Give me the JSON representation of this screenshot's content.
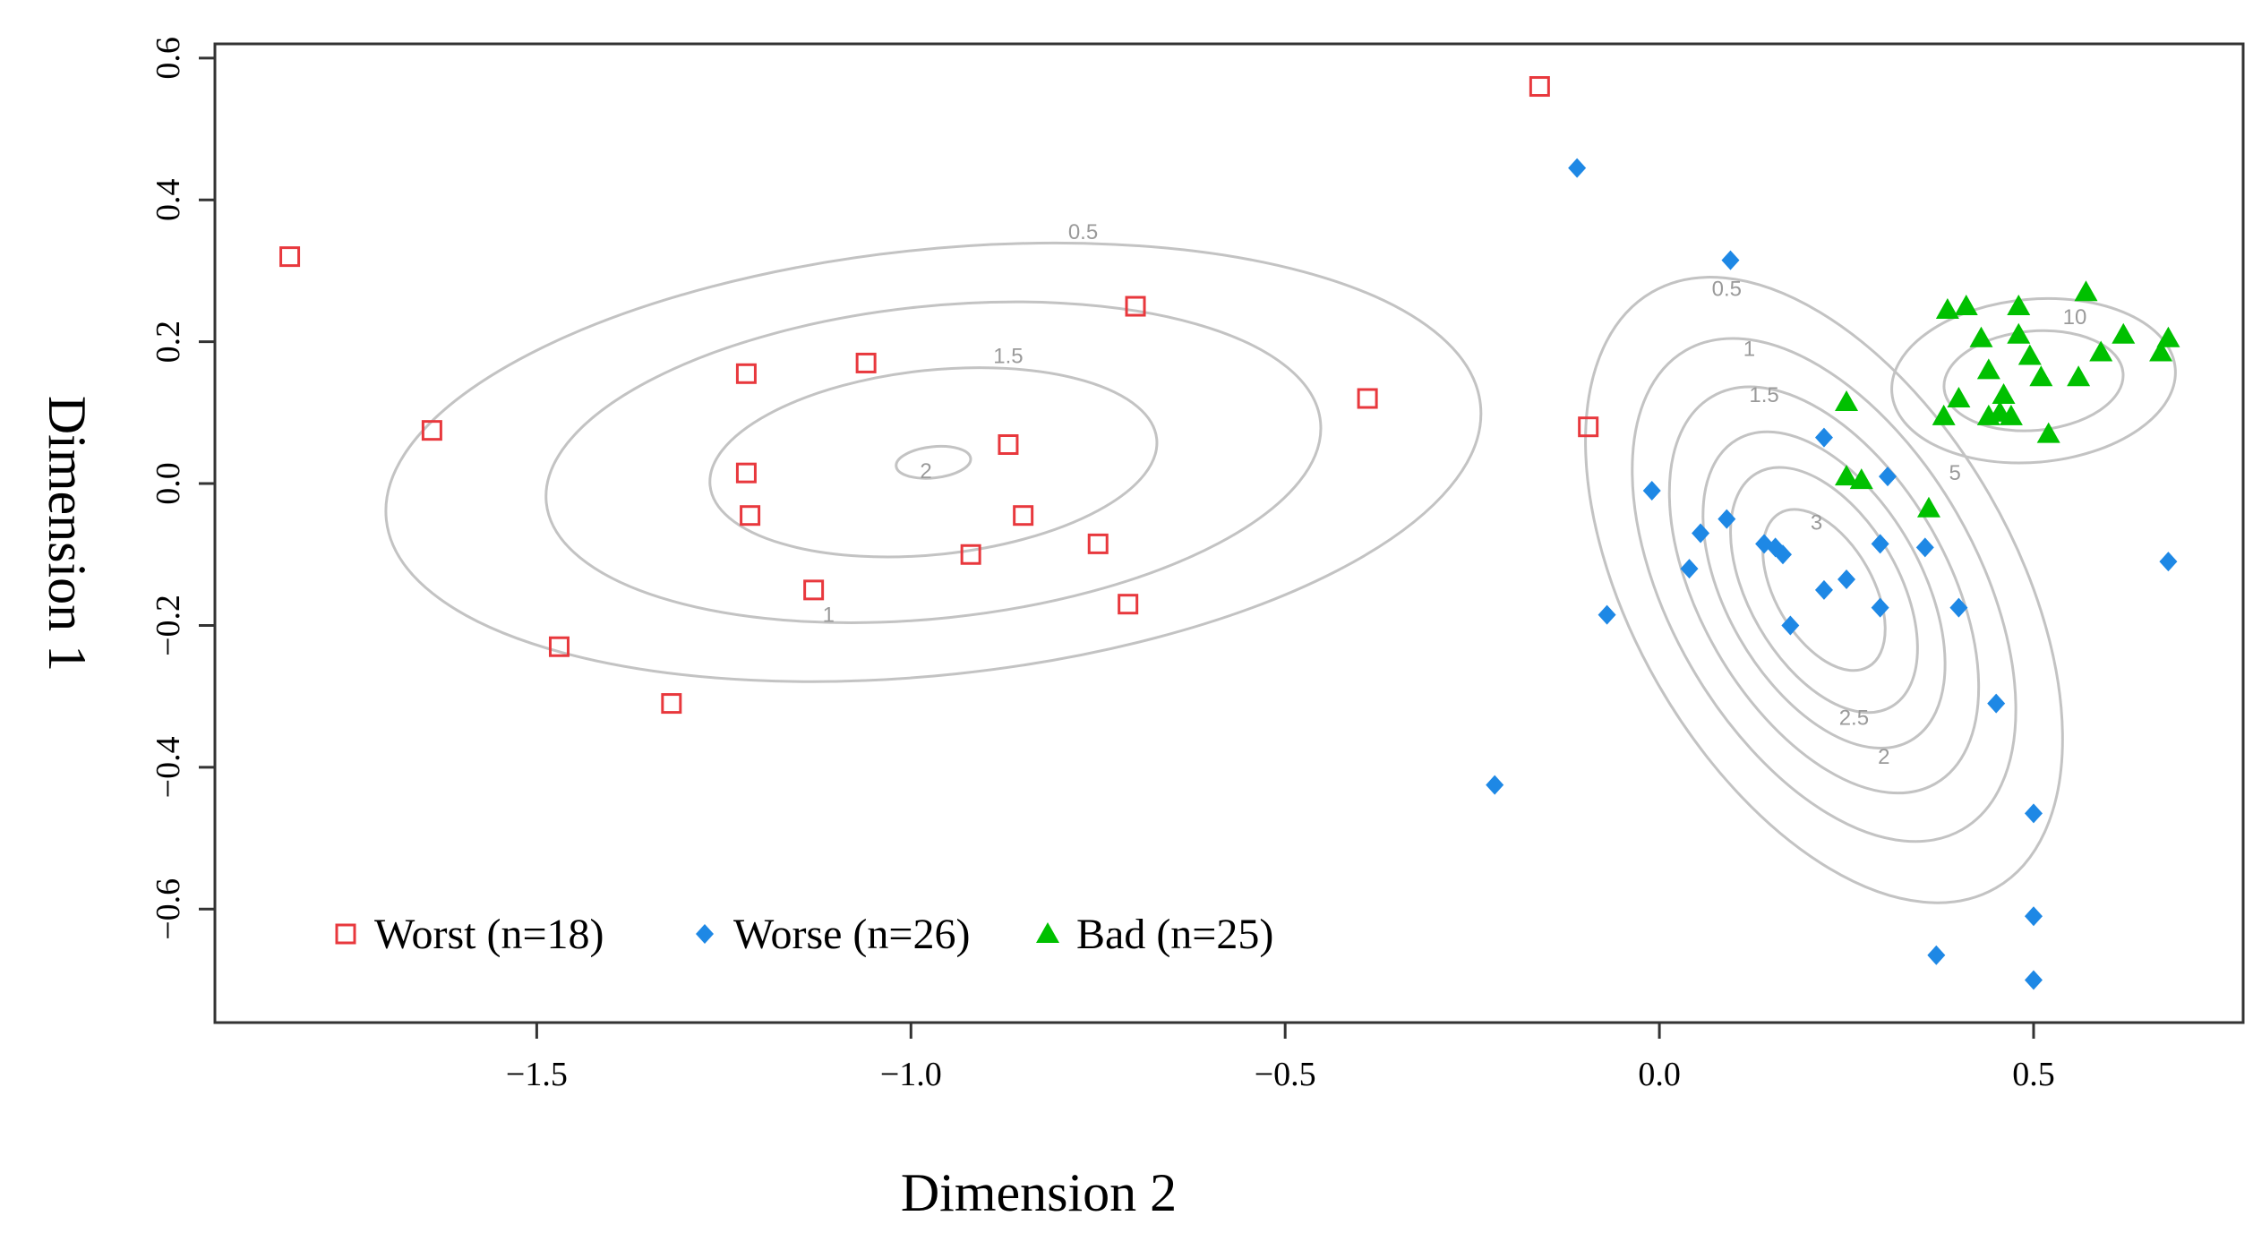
{
  "chart_data": {
    "type": "scatter",
    "xlabel": "Dimension 2",
    "ylabel": "Dimension 1",
    "xlim": [
      -1.93,
      0.78
    ],
    "ylim": [
      -0.76,
      0.62
    ],
    "xticks": [
      -1.5,
      -1.0,
      -0.5,
      0.0,
      0.5
    ],
    "xtick_labels": [
      "−1.5",
      "−1.0",
      "−0.5",
      "0.0",
      "0.5"
    ],
    "yticks": [
      -0.6,
      -0.4,
      -0.2,
      0.0,
      0.2,
      0.4,
      0.6
    ],
    "ytick_labels": [
      "−0.6",
      "−0.4",
      "−0.2",
      "0.0",
      "0.2",
      "0.4",
      "0.6"
    ],
    "legend_position": "bottom-left",
    "series": [
      {
        "name": "Worst (n=18)",
        "marker": "square-open",
        "color": "#e8383d",
        "points": [
          [
            -1.83,
            0.32
          ],
          [
            -1.64,
            0.075
          ],
          [
            -1.47,
            -0.23
          ],
          [
            -1.32,
            -0.31
          ],
          [
            -1.22,
            0.155
          ],
          [
            -1.22,
            0.015
          ],
          [
            -1.215,
            -0.045
          ],
          [
            -1.13,
            -0.15
          ],
          [
            -1.06,
            0.17
          ],
          [
            -0.92,
            -0.1
          ],
          [
            -0.87,
            0.055
          ],
          [
            -0.85,
            -0.045
          ],
          [
            -0.75,
            -0.085
          ],
          [
            -0.71,
            -0.17
          ],
          [
            -0.7,
            0.25
          ],
          [
            -0.39,
            0.12
          ],
          [
            -0.16,
            0.56
          ],
          [
            -0.095,
            0.08
          ]
        ]
      },
      {
        "name": "Worse (n=26)",
        "marker": "diamond",
        "color": "#1e88e5",
        "points": [
          [
            -0.11,
            0.445
          ],
          [
            0.095,
            0.315
          ],
          [
            -0.22,
            -0.425
          ],
          [
            -0.07,
            -0.185
          ],
          [
            -0.01,
            -0.01
          ],
          [
            0.04,
            -0.12
          ],
          [
            0.055,
            -0.07
          ],
          [
            0.09,
            -0.05
          ],
          [
            0.14,
            -0.085
          ],
          [
            0.155,
            -0.09
          ],
          [
            0.165,
            -0.1
          ],
          [
            0.175,
            -0.2
          ],
          [
            0.22,
            -0.15
          ],
          [
            0.22,
            0.065
          ],
          [
            0.25,
            -0.135
          ],
          [
            0.295,
            -0.085
          ],
          [
            0.295,
            -0.175
          ],
          [
            0.305,
            0.01
          ],
          [
            0.355,
            -0.09
          ],
          [
            0.4,
            -0.175
          ],
          [
            0.45,
            -0.31
          ],
          [
            0.5,
            -0.465
          ],
          [
            0.5,
            -0.61
          ],
          [
            0.5,
            -0.7
          ],
          [
            0.37,
            -0.665
          ],
          [
            0.68,
            -0.11
          ]
        ]
      },
      {
        "name": "Bad (n=25)",
        "marker": "triangle",
        "color": "#00c000",
        "points": [
          [
            0.25,
            0.115
          ],
          [
            0.25,
            0.01
          ],
          [
            0.27,
            0.005
          ],
          [
            0.36,
            -0.035
          ],
          [
            0.38,
            0.095
          ],
          [
            0.385,
            0.245
          ],
          [
            0.4,
            0.12
          ],
          [
            0.41,
            0.25
          ],
          [
            0.43,
            0.205
          ],
          [
            0.44,
            0.16
          ],
          [
            0.44,
            0.095
          ],
          [
            0.455,
            0.1
          ],
          [
            0.46,
            0.125
          ],
          [
            0.47,
            0.095
          ],
          [
            0.48,
            0.25
          ],
          [
            0.48,
            0.21
          ],
          [
            0.495,
            0.18
          ],
          [
            0.51,
            0.15
          ],
          [
            0.52,
            0.07
          ],
          [
            0.56,
            0.15
          ],
          [
            0.57,
            0.27
          ],
          [
            0.59,
            0.185
          ],
          [
            0.62,
            0.21
          ],
          [
            0.67,
            0.185
          ],
          [
            0.68,
            0.205
          ]
        ]
      }
    ],
    "contours": [
      {
        "group": "Worst",
        "center": [
          -0.97,
          0.03
        ],
        "levels": [
          {
            "label": "0.5",
            "rx": 0.735,
            "ry": 0.3,
            "label_at": [
              -0.77,
              0.355
            ]
          },
          {
            "label": "1",
            "rx": 0.52,
            "ry": 0.22,
            "label_at": [
              -1.11,
              -0.185
            ]
          },
          {
            "label": "1.5",
            "rx": 0.3,
            "ry": 0.13,
            "label_at": [
              -0.87,
              0.18
            ]
          },
          {
            "label": "2",
            "rx": 0.05,
            "ry": 0.022,
            "label_at": [
              -0.98,
              0.018
            ]
          }
        ]
      },
      {
        "group": "Worse",
        "center": [
          0.22,
          -0.15
        ],
        "levels": [
          {
            "label": "0.5",
            "rx": 0.255,
            "ry": 0.485,
            "label_at": [
              0.09,
              0.275
            ]
          },
          {
            "label": "1",
            "rx": 0.205,
            "ry": 0.39,
            "label_at": [
              0.12,
              0.19
            ]
          },
          {
            "label": "1.5",
            "rx": 0.165,
            "ry": 0.315,
            "label_at": [
              0.14,
              0.125
            ]
          },
          {
            "label": "2",
            "rx": 0.13,
            "ry": 0.245,
            "label_at": [
              0.3,
              -0.385
            ]
          },
          {
            "label": "2.5",
            "rx": 0.1,
            "ry": 0.19,
            "label_at": [
              0.26,
              -0.33
            ]
          },
          {
            "label": "3",
            "rx": 0.065,
            "ry": 0.125,
            "label_at": [
              0.21,
              -0.055
            ]
          }
        ]
      },
      {
        "group": "Bad",
        "center": [
          0.5,
          0.145
        ],
        "levels": [
          {
            "label": "5",
            "rx": 0.19,
            "ry": 0.115,
            "label_at": [
              0.395,
              0.015
            ]
          },
          {
            "label": "10",
            "rx": 0.12,
            "ry": 0.07,
            "label_at": [
              0.555,
              0.235
            ]
          }
        ]
      }
    ]
  }
}
